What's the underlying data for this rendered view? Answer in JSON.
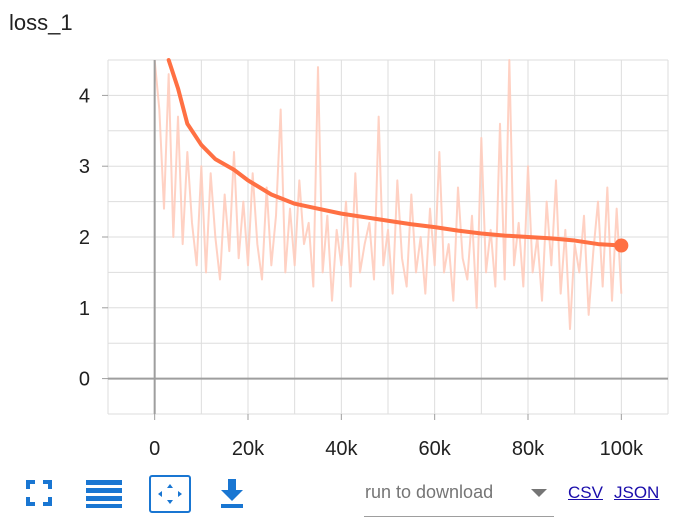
{
  "card": {
    "title": "loss_1"
  },
  "toolbar": {
    "icons": [
      "fullscreen-icon",
      "list-icon",
      "fit-domain-icon",
      "download-icon"
    ],
    "run_select_placeholder": "run to download",
    "csv_label": "CSV",
    "json_label": "JSON",
    "accent_color": "#1976d2"
  },
  "chart_data": {
    "type": "line",
    "title": "loss_1",
    "xlabel": "",
    "ylabel": "",
    "xlim": [
      -10000,
      110000
    ],
    "ylim": [
      -0.5,
      4.5
    ],
    "x_ticks": [
      0,
      20000,
      40000,
      60000,
      80000,
      100000
    ],
    "x_tick_labels": [
      "0",
      "20k",
      "40k",
      "60k",
      "80k",
      "100k"
    ],
    "y_ticks": [
      0,
      1,
      2,
      3,
      4
    ],
    "y_tick_labels": [
      "0",
      "1",
      "2",
      "3",
      "4"
    ],
    "grid": true,
    "colors": {
      "smoothed": "#ff7043",
      "raw": "#ffccbc",
      "grid": "#dddddd",
      "axis": "#9e9e9e"
    },
    "series": [
      {
        "kind": "smoothed",
        "x": [
          3000,
          5000,
          7000,
          10000,
          13000,
          17000,
          20000,
          25000,
          30000,
          35000,
          40000,
          45000,
          50000,
          55000,
          60000,
          65000,
          70000,
          75000,
          80000,
          85000,
          90000,
          95000,
          100000
        ],
        "values": [
          4.5,
          4.1,
          3.6,
          3.3,
          3.1,
          2.95,
          2.8,
          2.6,
          2.47,
          2.4,
          2.33,
          2.28,
          2.23,
          2.18,
          2.14,
          2.09,
          2.05,
          2.02,
          2.0,
          1.98,
          1.95,
          1.9,
          1.88
        ]
      },
      {
        "kind": "raw",
        "x": [
          0,
          1000,
          2000,
          3000,
          4000,
          5000,
          6000,
          7000,
          8000,
          9000,
          10000,
          11000,
          12000,
          13000,
          14000,
          15000,
          16000,
          17000,
          18000,
          19000,
          20000,
          21000,
          22000,
          23000,
          24000,
          25000,
          26000,
          27000,
          28000,
          29000,
          30000,
          31000,
          32000,
          33000,
          34000,
          35000,
          36000,
          37000,
          38000,
          39000,
          40000,
          41000,
          42000,
          43000,
          44000,
          45000,
          46000,
          47000,
          48000,
          49000,
          50000,
          51000,
          52000,
          53000,
          54000,
          55000,
          56000,
          57000,
          58000,
          59000,
          60000,
          61000,
          62000,
          63000,
          64000,
          65000,
          66000,
          67000,
          68000,
          69000,
          70000,
          71000,
          72000,
          73000,
          74000,
          75000,
          76000,
          77000,
          78000,
          79000,
          80000,
          81000,
          82000,
          83000,
          84000,
          85000,
          86000,
          87000,
          88000,
          89000,
          90000,
          91000,
          92000,
          93000,
          94000,
          95000,
          96000,
          97000,
          98000,
          99000,
          100000
        ],
        "values": [
          4.5,
          3.8,
          2.4,
          4.3,
          2.0,
          3.7,
          1.9,
          3.2,
          2.2,
          1.6,
          3.0,
          1.5,
          2.9,
          2.0,
          1.4,
          2.6,
          1.8,
          3.2,
          1.7,
          2.5,
          1.6,
          2.9,
          1.9,
          1.4,
          2.7,
          1.6,
          2.3,
          3.8,
          1.5,
          2.4,
          1.6,
          2.8,
          1.9,
          2.2,
          1.3,
          4.4,
          1.5,
          2.3,
          1.1,
          2.1,
          1.6,
          2.5,
          1.3,
          2.9,
          1.5,
          1.9,
          2.2,
          1.4,
          3.7,
          1.6,
          2.1,
          1.2,
          2.8,
          1.7,
          1.3,
          2.6,
          1.5,
          2.0,
          1.2,
          2.4,
          1.6,
          3.2,
          1.5,
          1.9,
          1.1,
          2.7,
          1.7,
          1.4,
          2.3,
          1.0,
          3.4,
          1.5,
          2.1,
          1.3,
          3.6,
          1.4,
          4.5,
          1.6,
          2.2,
          1.3,
          3.0,
          1.5,
          2.0,
          1.1,
          2.5,
          1.6,
          2.8,
          1.2,
          2.1,
          0.7,
          1.9,
          1.5,
          2.3,
          0.9,
          1.8,
          2.5,
          1.3,
          2.7,
          1.1,
          2.4,
          1.2
        ]
      }
    ]
  }
}
